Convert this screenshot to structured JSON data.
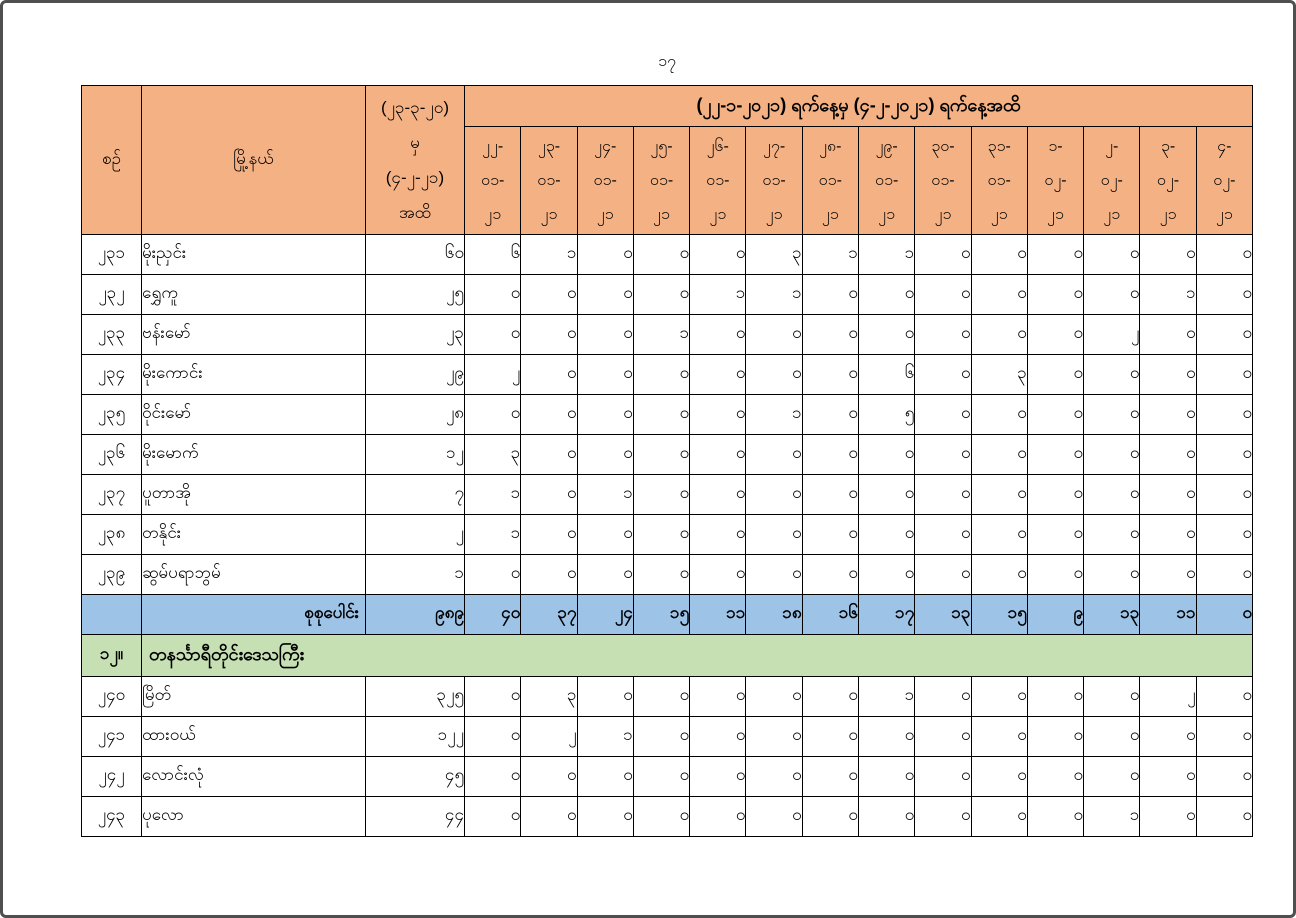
{
  "page": {
    "number": "၁၇"
  },
  "colors": {
    "header_bg": "#F4B183",
    "total_row_bg": "#9DC3E6",
    "section_row_bg": "#C6E0B4",
    "border": "#000000",
    "page_border": "#4F4F4F"
  },
  "table": {
    "header": {
      "serial": "စဉ်",
      "township": "မြို့နယ်",
      "cumulative_lines": [
        "(၂၃-၃-၂၀)",
        "မှ",
        "(၄-၂-၂၁)",
        "အထိ"
      ],
      "date_range": "(၂၂-၁-၂၀၂၁) ရက်နေ့မှ (၄-၂-၂၀၂၁) ရက်နေ့အထိ",
      "date_columns": [
        [
          "၂၂-",
          "၀၁-",
          "၂၁"
        ],
        [
          "၂၃-",
          "၀၁-",
          "၂၁"
        ],
        [
          "၂၄-",
          "၀၁-",
          "၂၁"
        ],
        [
          "၂၅-",
          "၀၁-",
          "၂၁"
        ],
        [
          "၂၆-",
          "၀၁-",
          "၂၁"
        ],
        [
          "၂၇-",
          "၀၁-",
          "၂၁"
        ],
        [
          "၂၈-",
          "၀၁-",
          "၂၁"
        ],
        [
          "၂၉-",
          "၀၁-",
          "၂၁"
        ],
        [
          "၃၀-",
          "၀၁-",
          "၂၁"
        ],
        [
          "၃၁-",
          "၀၁-",
          "၂၁"
        ],
        [
          "၁-",
          "၀၂-",
          "၂၁"
        ],
        [
          "၂-",
          "၀၂-",
          "၂၁"
        ],
        [
          "၃-",
          "၀၂-",
          "၂၁"
        ],
        [
          "၄-",
          "၀၂-",
          "၂၁"
        ]
      ]
    },
    "rows": [
      {
        "type": "data",
        "serial": "၂၃၁",
        "township": "မိုးညှင်း",
        "cumulative": "၆၀",
        "daily": [
          "၆",
          "၁",
          "၀",
          "၀",
          "၀",
          "၃",
          "၁",
          "၁",
          "၀",
          "၀",
          "၀",
          "၀",
          "၀",
          "၀"
        ]
      },
      {
        "type": "data",
        "serial": "၂၃၂",
        "township": "ရွှေကူ",
        "cumulative": "၂၅",
        "daily": [
          "၀",
          "၀",
          "၀",
          "၀",
          "၁",
          "၁",
          "၀",
          "၀",
          "၀",
          "၀",
          "၀",
          "၀",
          "၁",
          "၀"
        ]
      },
      {
        "type": "data",
        "serial": "၂၃၃",
        "township": "ဗန်းမော်",
        "cumulative": "၂၃",
        "daily": [
          "၀",
          "၀",
          "၀",
          "၁",
          "၀",
          "၀",
          "၀",
          "၀",
          "၀",
          "၀",
          "၀",
          "၂",
          "၀",
          "၀"
        ]
      },
      {
        "type": "data",
        "serial": "၂၃၄",
        "township": "မိုးကောင်း",
        "cumulative": "၂၉",
        "daily": [
          "၂",
          "၀",
          "၀",
          "၀",
          "၀",
          "၀",
          "၀",
          "၆",
          "၀",
          "၃",
          "၀",
          "၀",
          "၀",
          "၀"
        ]
      },
      {
        "type": "data",
        "serial": "၂၃၅",
        "township": "ဝိုင်းမော်",
        "cumulative": "၂၈",
        "daily": [
          "၀",
          "၀",
          "၀",
          "၀",
          "၀",
          "၁",
          "၀",
          "၅",
          "၀",
          "၀",
          "၀",
          "၀",
          "၀",
          "၀"
        ]
      },
      {
        "type": "data",
        "serial": "၂၃၆",
        "township": "မိုးမောက်",
        "cumulative": "၁၂",
        "daily": [
          "၃",
          "၀",
          "၀",
          "၀",
          "၀",
          "၀",
          "၀",
          "၀",
          "၀",
          "၀",
          "၀",
          "၀",
          "၀",
          "၀"
        ]
      },
      {
        "type": "data",
        "serial": "၂၃၇",
        "township": "ပူတာအို",
        "cumulative": "၇",
        "daily": [
          "၁",
          "၀",
          "၁",
          "၀",
          "၀",
          "၀",
          "၀",
          "၀",
          "၀",
          "၀",
          "၀",
          "၀",
          "၀",
          "၀"
        ]
      },
      {
        "type": "data",
        "serial": "၂၃၈",
        "township": "တနိုင်း",
        "cumulative": "၂",
        "daily": [
          "၁",
          "၀",
          "၀",
          "၀",
          "၀",
          "၀",
          "၀",
          "၀",
          "၀",
          "၀",
          "၀",
          "၀",
          "၀",
          "၀"
        ]
      },
      {
        "type": "data",
        "serial": "၂၃၉",
        "township": "ဆွမ်ပရာဘွမ်",
        "cumulative": "၁",
        "daily": [
          "၀",
          "၀",
          "၀",
          "၀",
          "၀",
          "၀",
          "၀",
          "၀",
          "၀",
          "၀",
          "၀",
          "၀",
          "၀",
          "၀"
        ]
      },
      {
        "type": "total",
        "label": "စုစုပေါင်း",
        "cumulative": "၉၈၉",
        "daily": [
          "၄၀",
          "၃၇",
          "၂၄",
          "၁၅",
          "၁၁",
          "၁၈",
          "၁၆",
          "၁၇",
          "၁၃",
          "၁၅",
          "၉",
          "၁၃",
          "၁၁",
          "၀"
        ]
      },
      {
        "type": "section",
        "serial": "၁၂။",
        "title": "တနင်္သာရီတိုင်းဒေသကြီး"
      },
      {
        "type": "data",
        "serial": "၂၄၀",
        "township": "မြိတ်",
        "cumulative": "၃၂၅",
        "daily": [
          "၀",
          "၃",
          "၀",
          "၀",
          "၀",
          "၀",
          "၀",
          "၁",
          "၀",
          "၀",
          "၀",
          "၀",
          "၂",
          "၀"
        ]
      },
      {
        "type": "data",
        "serial": "၂၄၁",
        "township": "ထားဝယ်",
        "cumulative": "၁၂၂",
        "daily": [
          "၀",
          "၂",
          "၁",
          "၀",
          "၀",
          "၀",
          "၀",
          "၀",
          "၀",
          "၀",
          "၀",
          "၀",
          "၀",
          "၀"
        ]
      },
      {
        "type": "data",
        "serial": "၂၄၂",
        "township": "လောင်းလုံ",
        "cumulative": "၄၅",
        "daily": [
          "၀",
          "၀",
          "၀",
          "၀",
          "၀",
          "၀",
          "၀",
          "၀",
          "၀",
          "၀",
          "၀",
          "၀",
          "၀",
          "၀"
        ]
      },
      {
        "type": "data",
        "serial": "၂၄၃",
        "township": "ပုလော",
        "cumulative": "၄၄",
        "daily": [
          "၀",
          "၀",
          "၀",
          "၀",
          "၀",
          "၀",
          "၀",
          "၀",
          "၀",
          "၀",
          "၀",
          "၁",
          "၀",
          "၀"
        ]
      }
    ]
  }
}
